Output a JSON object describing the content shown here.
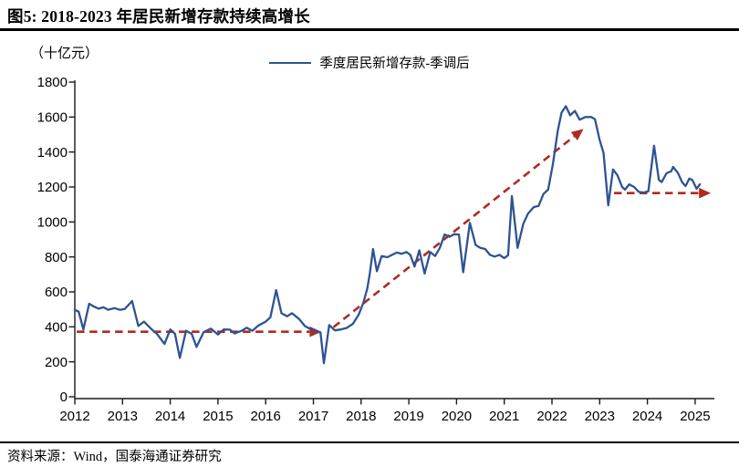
{
  "header": {
    "title": "图5: 2018-2023 年居民新增存款持续高增长"
  },
  "footer": {
    "source": "资料来源：Wind，国泰海通证券研究"
  },
  "colors": {
    "series_blue": "#2e5394",
    "trend_red": "#b02a20",
    "axis": "#1a1a1a",
    "rule_black": "#000000"
  },
  "chart_data": {
    "type": "line",
    "title": "图5: 2018-2023 年居民新增存款持续高增长",
    "unit_label": "（十亿元）",
    "legend": [
      "季度居民新增存款-季调后"
    ],
    "legend_position": "top-center",
    "grid": false,
    "xlim": [
      2012,
      2025.45
    ],
    "ylim": [
      0,
      1800
    ],
    "y_tick_step": 200,
    "x_ticks": [
      2012,
      2013,
      2014,
      2015,
      2016,
      2017,
      2018,
      2019,
      2020,
      2021,
      2022,
      2023,
      2024,
      2025
    ],
    "series": [
      {
        "name": "季度居民新增存款-季调后",
        "color": "#2e5394",
        "points": [
          [
            2012.0,
            497
          ],
          [
            2012.08,
            487
          ],
          [
            2012.18,
            385
          ],
          [
            2012.3,
            532
          ],
          [
            2012.4,
            516
          ],
          [
            2012.5,
            504
          ],
          [
            2012.6,
            512
          ],
          [
            2012.7,
            498
          ],
          [
            2012.83,
            507
          ],
          [
            2012.95,
            497
          ],
          [
            2013.05,
            503
          ],
          [
            2013.2,
            548
          ],
          [
            2013.33,
            405
          ],
          [
            2013.45,
            430
          ],
          [
            2013.6,
            388
          ],
          [
            2013.72,
            360
          ],
          [
            2013.88,
            302
          ],
          [
            2014.0,
            385
          ],
          [
            2014.1,
            360
          ],
          [
            2014.2,
            222
          ],
          [
            2014.33,
            378
          ],
          [
            2014.45,
            360
          ],
          [
            2014.55,
            285
          ],
          [
            2014.7,
            370
          ],
          [
            2014.85,
            390
          ],
          [
            2015.0,
            356
          ],
          [
            2015.12,
            385
          ],
          [
            2015.25,
            384
          ],
          [
            2015.35,
            362
          ],
          [
            2015.5,
            378
          ],
          [
            2015.6,
            395
          ],
          [
            2015.72,
            378
          ],
          [
            2015.85,
            408
          ],
          [
            2016.0,
            430
          ],
          [
            2016.1,
            455
          ],
          [
            2016.22,
            610
          ],
          [
            2016.33,
            478
          ],
          [
            2016.45,
            460
          ],
          [
            2016.55,
            478
          ],
          [
            2016.7,
            445
          ],
          [
            2016.82,
            405
          ],
          [
            2016.95,
            385
          ],
          [
            2017.08,
            372
          ],
          [
            2017.15,
            368
          ],
          [
            2017.22,
            192
          ],
          [
            2017.33,
            410
          ],
          [
            2017.45,
            380
          ],
          [
            2017.58,
            385
          ],
          [
            2017.7,
            394
          ],
          [
            2017.83,
            418
          ],
          [
            2017.95,
            470
          ],
          [
            2018.05,
            540
          ],
          [
            2018.13,
            620
          ],
          [
            2018.18,
            700
          ],
          [
            2018.25,
            845
          ],
          [
            2018.33,
            718
          ],
          [
            2018.43,
            805
          ],
          [
            2018.55,
            798
          ],
          [
            2018.65,
            812
          ],
          [
            2018.75,
            825
          ],
          [
            2018.85,
            818
          ],
          [
            2018.95,
            828
          ],
          [
            2019.03,
            812
          ],
          [
            2019.12,
            745
          ],
          [
            2019.22,
            838
          ],
          [
            2019.33,
            705
          ],
          [
            2019.45,
            828
          ],
          [
            2019.55,
            805
          ],
          [
            2019.65,
            852
          ],
          [
            2019.75,
            928
          ],
          [
            2019.85,
            915
          ],
          [
            2019.95,
            930
          ],
          [
            2020.05,
            928
          ],
          [
            2020.14,
            712
          ],
          [
            2020.28,
            995
          ],
          [
            2020.4,
            868
          ],
          [
            2020.5,
            852
          ],
          [
            2020.6,
            845
          ],
          [
            2020.7,
            812
          ],
          [
            2020.8,
            802
          ],
          [
            2020.9,
            812
          ],
          [
            2021.0,
            793
          ],
          [
            2021.08,
            810
          ],
          [
            2021.16,
            1148
          ],
          [
            2021.28,
            852
          ],
          [
            2021.4,
            990
          ],
          [
            2021.5,
            1048
          ],
          [
            2021.62,
            1085
          ],
          [
            2021.72,
            1092
          ],
          [
            2021.82,
            1160
          ],
          [
            2021.92,
            1185
          ],
          [
            2022.02,
            1330
          ],
          [
            2022.12,
            1520
          ],
          [
            2022.2,
            1625
          ],
          [
            2022.29,
            1662
          ],
          [
            2022.38,
            1610
          ],
          [
            2022.48,
            1635
          ],
          [
            2022.58,
            1585
          ],
          [
            2022.7,
            1600
          ],
          [
            2022.82,
            1600
          ],
          [
            2022.9,
            1588
          ],
          [
            2023.0,
            1468
          ],
          [
            2023.08,
            1395
          ],
          [
            2023.18,
            1095
          ],
          [
            2023.28,
            1300
          ],
          [
            2023.37,
            1268
          ],
          [
            2023.47,
            1200
          ],
          [
            2023.53,
            1185
          ],
          [
            2023.62,
            1215
          ],
          [
            2023.72,
            1200
          ],
          [
            2023.82,
            1172
          ],
          [
            2023.92,
            1168
          ],
          [
            2024.02,
            1175
          ],
          [
            2024.14,
            1436
          ],
          [
            2024.24,
            1240
          ],
          [
            2024.3,
            1228
          ],
          [
            2024.4,
            1278
          ],
          [
            2024.5,
            1290
          ],
          [
            2024.54,
            1315
          ],
          [
            2024.64,
            1280
          ],
          [
            2024.73,
            1226
          ],
          [
            2024.8,
            1205
          ],
          [
            2024.88,
            1248
          ],
          [
            2024.94,
            1240
          ],
          [
            2025.03,
            1190
          ],
          [
            2025.1,
            1215
          ]
        ]
      }
    ],
    "trend_arrows": [
      {
        "style": "dashed",
        "color": "#b02a20",
        "from": [
          2012.04,
          372
        ],
        "to": [
          2017.17,
          372
        ]
      },
      {
        "style": "dashed",
        "color": "#b02a20",
        "from": [
          2017.42,
          398
        ],
        "to": [
          2022.66,
          1532
        ]
      },
      {
        "style": "dashed",
        "color": "#b02a20",
        "from": [
          2023.3,
          1165
        ],
        "to": [
          2025.33,
          1165
        ]
      }
    ]
  }
}
